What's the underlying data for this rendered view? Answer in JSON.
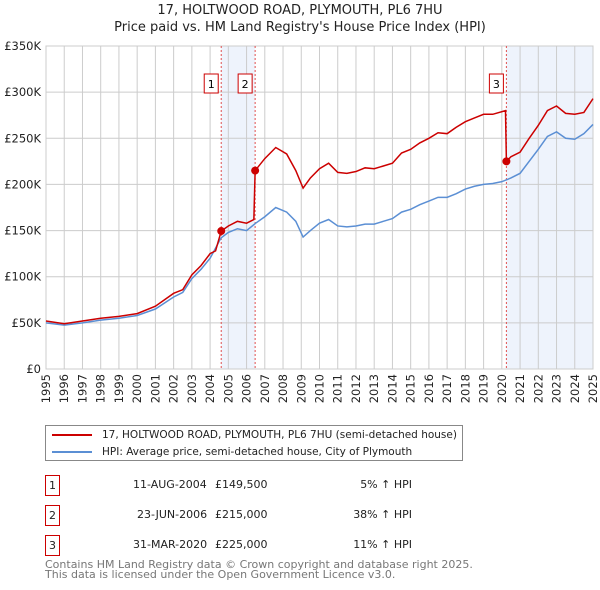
{
  "chart_data": {
    "type": "line",
    "title": "17, HOLTWOOD ROAD, PLYMOUTH, PL6 7HU",
    "subtitle": "Price paid vs. HM Land Registry's House Price Index (HPI)",
    "xlim": [
      1995,
      2025
    ],
    "ylim": [
      0,
      350000
    ],
    "y_ticks": [
      0,
      50000,
      100000,
      150000,
      200000,
      250000,
      300000,
      350000
    ],
    "y_tick_labels": [
      "£0",
      "£50K",
      "£100K",
      "£150K",
      "£200K",
      "£250K",
      "£300K",
      "£350K"
    ],
    "x_ticks": [
      1995,
      1996,
      1997,
      1998,
      1999,
      2000,
      2001,
      2002,
      2003,
      2004,
      2005,
      2006,
      2007,
      2008,
      2009,
      2010,
      2011,
      2012,
      2013,
      2014,
      2015,
      2016,
      2017,
      2018,
      2019,
      2020,
      2021,
      2022,
      2023,
      2024,
      2025
    ],
    "grid": true,
    "series": [
      {
        "name": "17, HOLTWOOD ROAD, PLYMOUTH, PL6 7HU (semi-detached house)",
        "color": "#cc0000",
        "x": [
          1995,
          1996,
          1997,
          1998,
          1999,
          2000,
          2001,
          2002,
          2002.5,
          2003,
          2003.5,
          2004,
          2004.3,
          2004.61,
          2005,
          2005.5,
          2006,
          2006.4,
          2006.47,
          2007,
          2007.6,
          2008.2,
          2008.7,
          2009.1,
          2009.5,
          2010,
          2010.5,
          2011,
          2011.5,
          2012,
          2012.5,
          2013,
          2013.5,
          2014,
          2014.5,
          2015,
          2015.5,
          2016,
          2016.5,
          2017,
          2017.5,
          2018,
          2018.5,
          2019,
          2019.5,
          2020.2,
          2020.25,
          2020.5,
          2021,
          2021.5,
          2022,
          2022.5,
          2023,
          2023.5,
          2024,
          2024.5,
          2025
        ],
        "y": [
          52,
          49,
          52,
          55,
          57,
          60,
          68,
          82,
          86,
          102,
          112,
          125,
          128,
          149.5,
          155,
          160,
          158,
          162,
          215,
          228,
          240,
          233,
          215,
          196,
          207,
          217,
          223,
          213,
          212,
          214,
          218,
          217,
          220,
          223,
          234,
          238,
          245,
          250,
          256,
          255,
          262,
          268,
          272,
          276,
          276,
          280,
          225,
          230,
          235,
          250,
          264,
          280,
          285,
          277,
          276,
          278,
          293
        ]
      },
      {
        "name": "HPI: Average price, semi-detached house, City of Plymouth",
        "color": "#5b8fd4",
        "x": [
          1995,
          1996,
          1997,
          1998,
          1999,
          2000,
          2001,
          2002,
          2002.5,
          2003,
          2003.5,
          2004,
          2004.6,
          2005,
          2005.5,
          2006,
          2006.5,
          2007,
          2007.6,
          2008.2,
          2008.7,
          2009.1,
          2009.5,
          2010,
          2010.5,
          2011,
          2011.5,
          2012,
          2012.5,
          2013,
          2013.5,
          2014,
          2014.5,
          2015,
          2015.5,
          2016,
          2016.5,
          2017,
          2017.5,
          2018,
          2018.5,
          2019,
          2019.5,
          2020,
          2020.5,
          2021,
          2021.5,
          2022,
          2022.5,
          2023,
          2023.5,
          2024,
          2024.5,
          2025
        ],
        "y": [
          50,
          47.5,
          50,
          53,
          55,
          58,
          65,
          78,
          83,
          98,
          108,
          120,
          142,
          148,
          152,
          150,
          158,
          165,
          175,
          170,
          160,
          143,
          150,
          158,
          162,
          155,
          154,
          155,
          157,
          157,
          160,
          163,
          170,
          173,
          178,
          182,
          186,
          186,
          190,
          195,
          198,
          200,
          201,
          203,
          207,
          212,
          225,
          238,
          252,
          257,
          250,
          249,
          255,
          265
        ]
      }
    ],
    "y_units": "thousands GBP",
    "sales": [
      {
        "label": "1",
        "x": 2004.61,
        "y": 149.5,
        "date": "11-AUG-2004",
        "price": "£149,500",
        "hpi": "5% ↑ HPI"
      },
      {
        "label": "2",
        "x": 2006.47,
        "y": 215,
        "date": "23-JUN-2006",
        "price": "£215,000",
        "hpi": "38% ↑ HPI"
      },
      {
        "label": "3",
        "x": 2020.25,
        "y": 225,
        "date": "31-MAR-2020",
        "price": "£225,000",
        "hpi": "11% ↑ HPI"
      }
    ],
    "shaded": [
      [
        2004.61,
        2006.47
      ],
      [
        2020.25,
        2025
      ]
    ],
    "footer": [
      "Contains HM Land Registry data © Crown copyright and database right 2025.",
      "This data is licensed under the Open Government Licence v3.0."
    ]
  }
}
